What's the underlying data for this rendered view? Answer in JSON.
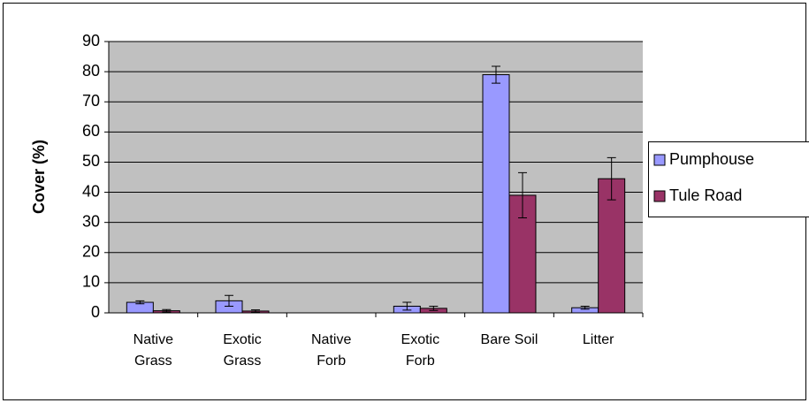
{
  "chart_data": {
    "type": "bar",
    "y_label": "Cover (%)",
    "categories": [
      [
        "Native",
        "Grass"
      ],
      [
        "Exotic",
        "Grass"
      ],
      [
        "Native",
        "Forb"
      ],
      [
        "Exotic",
        "Forb"
      ],
      [
        "Bare Soil"
      ],
      [
        "Litter"
      ]
    ],
    "series": [
      {
        "name": "Pumphouse",
        "color": "#9999ff",
        "values": [
          3.5,
          4,
          0,
          2.2,
          79,
          1.7
        ],
        "errors": [
          0.5,
          1.8,
          0,
          1.3,
          2.8,
          0.5
        ]
      },
      {
        "name": "Tule Road",
        "color": "#993366",
        "values": [
          0.7,
          0.6,
          0,
          1.5,
          39,
          44.5
        ],
        "errors": [
          0.4,
          0.4,
          0,
          0.7,
          7.5,
          7
        ]
      }
    ],
    "ylim": [
      0,
      90
    ],
    "yticks": [
      0,
      10,
      20,
      30,
      40,
      50,
      60,
      70,
      80,
      90
    ],
    "grid": true,
    "legend": "right"
  }
}
